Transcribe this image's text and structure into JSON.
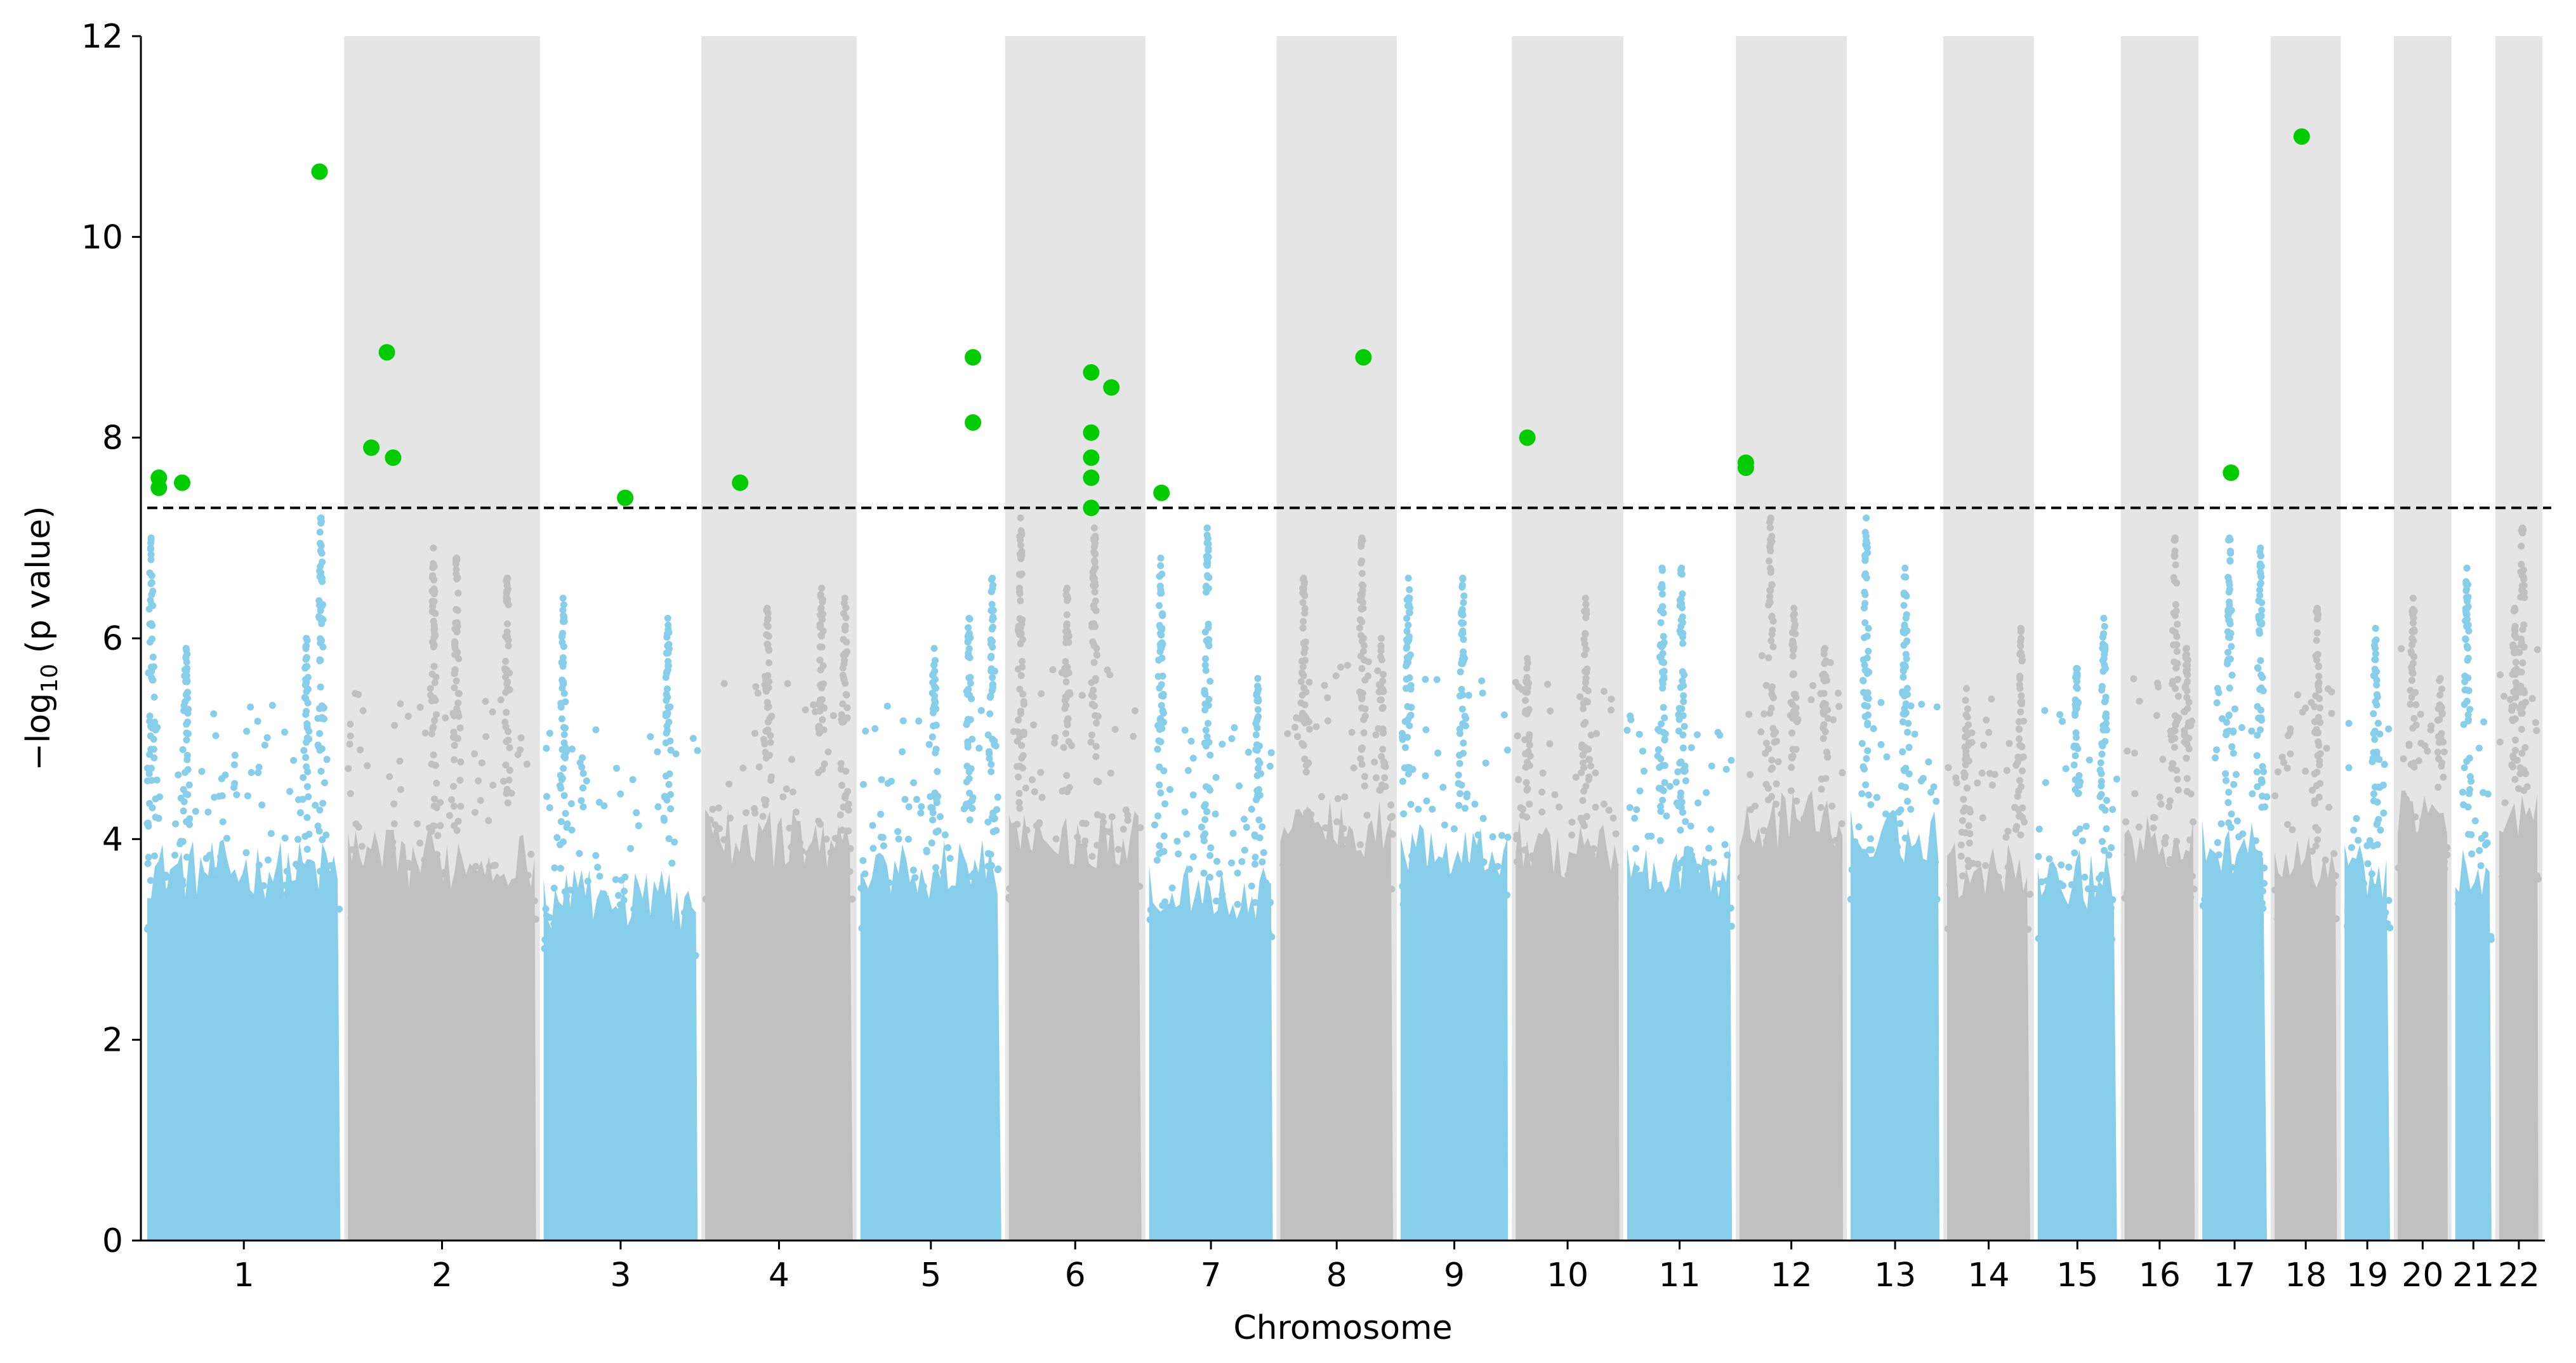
{
  "chart_data": {
    "type": "scatter",
    "title": "",
    "xlabel": "Chromosome",
    "ylabel_main": "−log",
    "ylabel_sub": "10",
    "ylabel_rest": " (p value)",
    "ylim": [
      0,
      12
    ],
    "yticks": [
      0,
      2,
      4,
      6,
      8,
      10,
      12
    ],
    "grid": false,
    "threshold": 7.3,
    "colors": {
      "odd": "#87ceeb",
      "even": "#c0c0c0",
      "band": "#e5e5e5",
      "significant": "#00cc00",
      "threshold": "#000000"
    },
    "chromosomes": [
      {
        "label": "1",
        "length": 248.9,
        "base_max": 3.9,
        "peaks": [
          [
            5,
            7.0
          ],
          [
            50,
            5.9
          ],
          [
            205,
            6.0
          ],
          [
            224,
            7.2
          ]
        ]
      },
      {
        "label": "2",
        "length": 242.2,
        "base_max": 4.0,
        "peaks": [
          [
            110,
            6.9
          ],
          [
            140,
            6.8
          ],
          [
            205,
            6.6
          ]
        ]
      },
      {
        "label": "3",
        "length": 198.3,
        "base_max": 3.6,
        "peaks": [
          [
            25,
            6.4
          ],
          [
            160,
            6.2
          ]
        ]
      },
      {
        "label": "4",
        "length": 190.2,
        "base_max": 4.2,
        "peaks": [
          [
            80,
            6.3
          ],
          [
            150,
            6.5
          ],
          [
            180,
            6.4
          ]
        ]
      },
      {
        "label": "5",
        "length": 181.5,
        "base_max": 3.9,
        "peaks": [
          [
            95,
            5.9
          ],
          [
            140,
            6.2
          ],
          [
            170,
            6.6
          ]
        ]
      },
      {
        "label": "6",
        "length": 170.8,
        "base_max": 4.2,
        "peaks": [
          [
            15,
            7.2
          ],
          [
            75,
            6.5
          ],
          [
            110,
            7.1
          ]
        ]
      },
      {
        "label": "7",
        "length": 159.3,
        "base_max": 3.7,
        "peaks": [
          [
            15,
            6.8
          ],
          [
            75,
            7.1
          ],
          [
            140,
            5.6
          ]
        ]
      },
      {
        "label": "8",
        "length": 145.1,
        "base_max": 4.3,
        "peaks": [
          [
            30,
            6.6
          ],
          [
            105,
            7.0
          ],
          [
            130,
            6.0
          ]
        ]
      },
      {
        "label": "9",
        "length": 138.4,
        "base_max": 4.1,
        "peaks": [
          [
            10,
            6.6
          ],
          [
            80,
            6.6
          ]
        ]
      },
      {
        "label": "10",
        "length": 133.8,
        "base_max": 4.1,
        "peaks": [
          [
            15,
            5.8
          ],
          [
            90,
            6.4
          ]
        ]
      },
      {
        "label": "11",
        "length": 135.1,
        "base_max": 3.9,
        "peaks": [
          [
            45,
            6.7
          ],
          [
            70,
            6.7
          ]
        ]
      },
      {
        "label": "12",
        "length": 133.3,
        "base_max": 4.4,
        "peaks": [
          [
            40,
            7.2
          ],
          [
            70,
            6.3
          ],
          [
            110,
            5.9
          ]
        ]
      },
      {
        "label": "13",
        "length": 114.4,
        "base_max": 4.2,
        "peaks": [
          [
            20,
            7.2
          ],
          [
            70,
            6.7
          ]
        ]
      },
      {
        "label": "14",
        "length": 107.0,
        "base_max": 3.9,
        "peaks": [
          [
            25,
            5.5
          ],
          [
            95,
            6.1
          ]
        ]
      },
      {
        "label": "15",
        "length": 102.0,
        "base_max": 3.8,
        "peaks": [
          [
            50,
            5.7
          ],
          [
            85,
            6.2
          ]
        ]
      },
      {
        "label": "16",
        "length": 90.3,
        "base_max": 4.2,
        "peaks": [
          [
            65,
            7.0
          ],
          [
            80,
            5.9
          ]
        ]
      },
      {
        "label": "17",
        "length": 83.3,
        "base_max": 4.1,
        "peaks": [
          [
            35,
            7.0
          ],
          [
            75,
            6.9
          ]
        ]
      },
      {
        "label": "18",
        "length": 80.4,
        "base_max": 4.0,
        "peaks": [
          [
            55,
            6.3
          ]
        ]
      },
      {
        "label": "19",
        "length": 58.6,
        "base_max": 3.9,
        "peaks": [
          [
            40,
            6.1
          ]
        ]
      },
      {
        "label": "20",
        "length": 64.4,
        "base_max": 4.5,
        "peaks": [
          [
            20,
            6.4
          ],
          [
            55,
            5.6
          ]
        ]
      },
      {
        "label": "21",
        "length": 46.7,
        "base_max": 3.8,
        "peaks": [
          [
            15,
            6.7
          ]
        ]
      },
      {
        "label": "22",
        "length": 50.8,
        "base_max": 4.4,
        "peaks": [
          [
            20,
            6.3
          ],
          [
            30,
            7.1
          ]
        ]
      }
    ],
    "significant_points": [
      {
        "chr": "1",
        "pos": 15,
        "y": 7.6
      },
      {
        "chr": "1",
        "pos": 15,
        "y": 7.5
      },
      {
        "chr": "1",
        "pos": 45,
        "y": 7.55
      },
      {
        "chr": "1",
        "pos": 222,
        "y": 10.65
      },
      {
        "chr": "2",
        "pos": 30,
        "y": 7.9
      },
      {
        "chr": "2",
        "pos": 50,
        "y": 8.85
      },
      {
        "chr": "2",
        "pos": 58,
        "y": 7.8
      },
      {
        "chr": "3",
        "pos": 105,
        "y": 7.4
      },
      {
        "chr": "4",
        "pos": 45,
        "y": 7.55
      },
      {
        "chr": "5",
        "pos": 145,
        "y": 8.8
      },
      {
        "chr": "5",
        "pos": 145,
        "y": 8.15
      },
      {
        "chr": "6",
        "pos": 106,
        "y": 8.65
      },
      {
        "chr": "6",
        "pos": 106,
        "y": 8.05
      },
      {
        "chr": "6",
        "pos": 106,
        "y": 7.8
      },
      {
        "chr": "6",
        "pos": 106,
        "y": 7.6
      },
      {
        "chr": "6",
        "pos": 106,
        "y": 7.3
      },
      {
        "chr": "6",
        "pos": 132,
        "y": 8.5
      },
      {
        "chr": "7",
        "pos": 16,
        "y": 7.45
      },
      {
        "chr": "8",
        "pos": 107,
        "y": 8.8
      },
      {
        "chr": "10",
        "pos": 15,
        "y": 8.0
      },
      {
        "chr": "12",
        "pos": 8,
        "y": 7.75
      },
      {
        "chr": "12",
        "pos": 8,
        "y": 7.7
      },
      {
        "chr": "17",
        "pos": 37,
        "y": 7.65
      },
      {
        "chr": "18",
        "pos": 35,
        "y": 11.0
      }
    ]
  }
}
